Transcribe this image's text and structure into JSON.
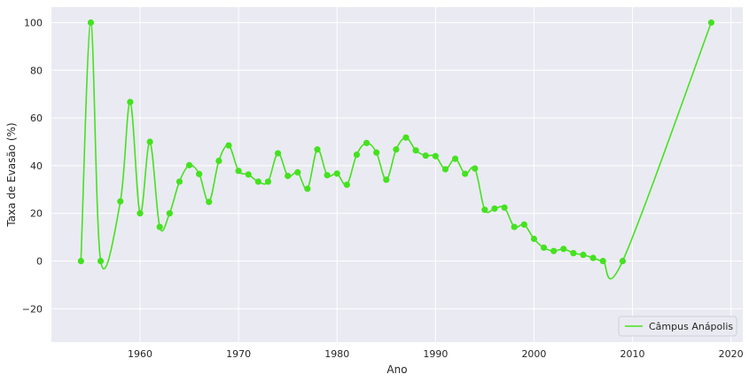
{
  "chart_data": {
    "type": "line",
    "xlabel": "Ano",
    "ylabel": "Taxa de Evasão (%)",
    "xlim": [
      1951,
      2021.2
    ],
    "ylim": [
      -34,
      106.5
    ],
    "xticks": [
      1960,
      1970,
      1980,
      1990,
      2000,
      2010,
      2020
    ],
    "yticks": [
      -20,
      0,
      20,
      40,
      60,
      80,
      100
    ],
    "grid": true,
    "legend_position": "bottom-right",
    "colors": {
      "series": "#44e21f",
      "background": "#eaeaf2",
      "grid": "#ffffff"
    },
    "series": [
      {
        "name": "Câmpus Anápolis",
        "points": [
          [
            1954,
            0
          ],
          [
            1955,
            100
          ],
          [
            1956,
            0
          ],
          [
            1958,
            25
          ],
          [
            1959,
            66.7
          ],
          [
            1960,
            20
          ],
          [
            1961,
            50
          ],
          [
            1962,
            14.3
          ],
          [
            1963,
            20
          ],
          [
            1964,
            33.3
          ],
          [
            1965,
            40.2
          ],
          [
            1966,
            36.5
          ],
          [
            1967,
            24.8
          ],
          [
            1968,
            42
          ],
          [
            1969,
            48.5
          ],
          [
            1970,
            37.8
          ],
          [
            1971,
            36.3
          ],
          [
            1972,
            33.3
          ],
          [
            1973,
            33.3
          ],
          [
            1974,
            45.2
          ],
          [
            1975,
            35.7
          ],
          [
            1976,
            37.2
          ],
          [
            1977,
            30.3
          ],
          [
            1978,
            46.8
          ],
          [
            1979,
            36
          ],
          [
            1980,
            36.7
          ],
          [
            1981,
            32
          ],
          [
            1982,
            44.6
          ],
          [
            1983,
            49.5
          ],
          [
            1984,
            45.5
          ],
          [
            1985,
            34.1
          ],
          [
            1986,
            46.8
          ],
          [
            1987,
            51.8
          ],
          [
            1988,
            46.4
          ],
          [
            1989,
            44.2
          ],
          [
            1990,
            44
          ],
          [
            1991,
            38.5
          ],
          [
            1992,
            42.9
          ],
          [
            1993,
            36.6
          ],
          [
            1994,
            38.8
          ],
          [
            1995,
            21.5
          ],
          [
            1996,
            22
          ],
          [
            1997,
            22.4
          ],
          [
            1998,
            14.3
          ],
          [
            1999,
            15.3
          ],
          [
            2000,
            9.3
          ],
          [
            2001,
            5.6
          ],
          [
            2002,
            4.2
          ],
          [
            2003,
            5.1
          ],
          [
            2004,
            3.3
          ],
          [
            2005,
            2.6
          ],
          [
            2006,
            1.3
          ],
          [
            2007,
            0
          ],
          [
            2009,
            0
          ],
          [
            2018,
            100
          ]
        ]
      }
    ]
  }
}
